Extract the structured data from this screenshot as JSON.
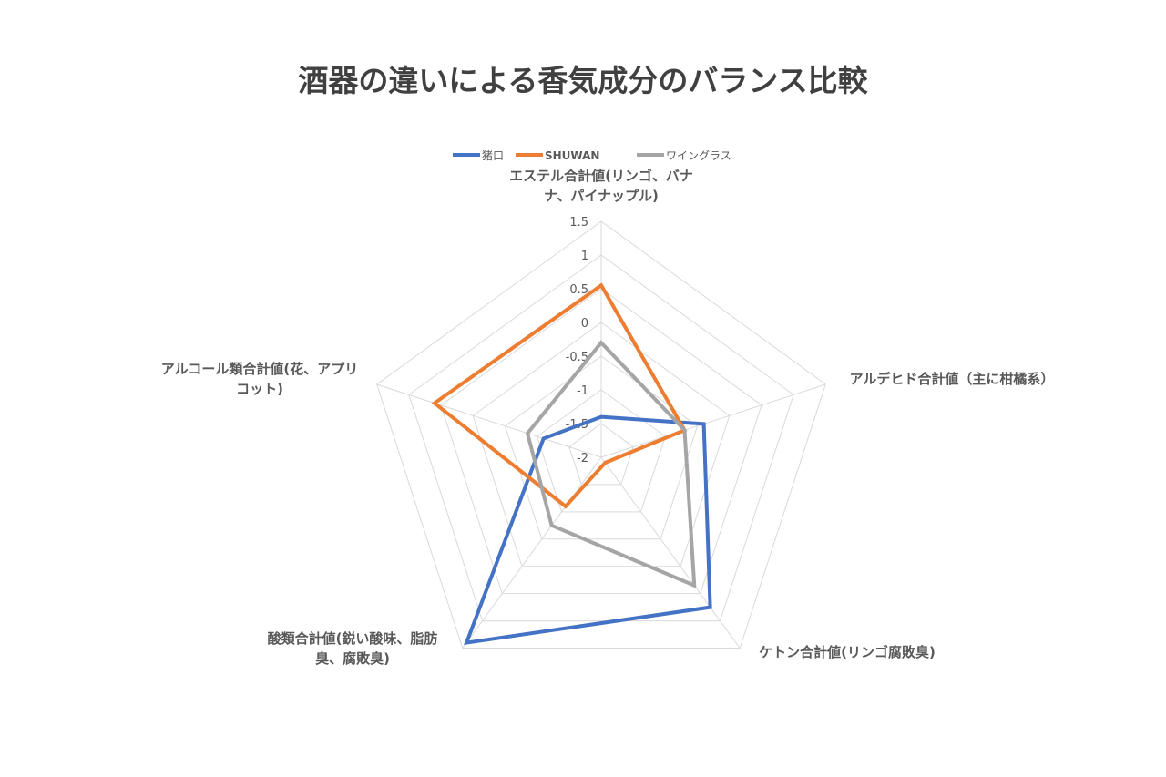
{
  "chart_data": {
    "type": "radar",
    "title": "酒器の違いによる香気成分のバランス比較",
    "axes": [
      [
        "エステル合計値(リンゴ、バナ",
        "ナ、パイナップル)"
      ],
      [
        "アルデヒド合計値（主に柑橘系）"
      ],
      [
        "ケトン合計値(リンゴ腐敗臭)"
      ],
      [
        "酸類合計値(鋭い酸味、脂肪",
        "臭、腐敗臭)"
      ],
      [
        "アルコール類合計値(花、アプリ",
        "コット)"
      ]
    ],
    "rlim": [
      -2,
      1.5
    ],
    "ticks": [
      "1.5",
      "1",
      "0.5",
      "0",
      "-0.5",
      "-1",
      "-1.5",
      "-2"
    ],
    "tick_values": [
      1.5,
      1,
      0.5,
      0,
      -0.5,
      -1,
      -1.5,
      -2
    ],
    "grid": true,
    "legend": "top",
    "series": [
      {
        "name": "猪口",
        "color": "#4472C4",
        "values": [
          -1.4,
          -0.4,
          0.75,
          1.4,
          -1.1
        ]
      },
      {
        "name": "SHUWAN",
        "color": "#ED7D31",
        "values": [
          0.55,
          -0.7,
          -1.9,
          -1.1,
          0.6
        ]
      },
      {
        "name": "ワイングラス",
        "color": "#A5A5A5",
        "values": [
          -0.3,
          -0.7,
          0.35,
          -0.75,
          -0.85
        ]
      }
    ]
  }
}
